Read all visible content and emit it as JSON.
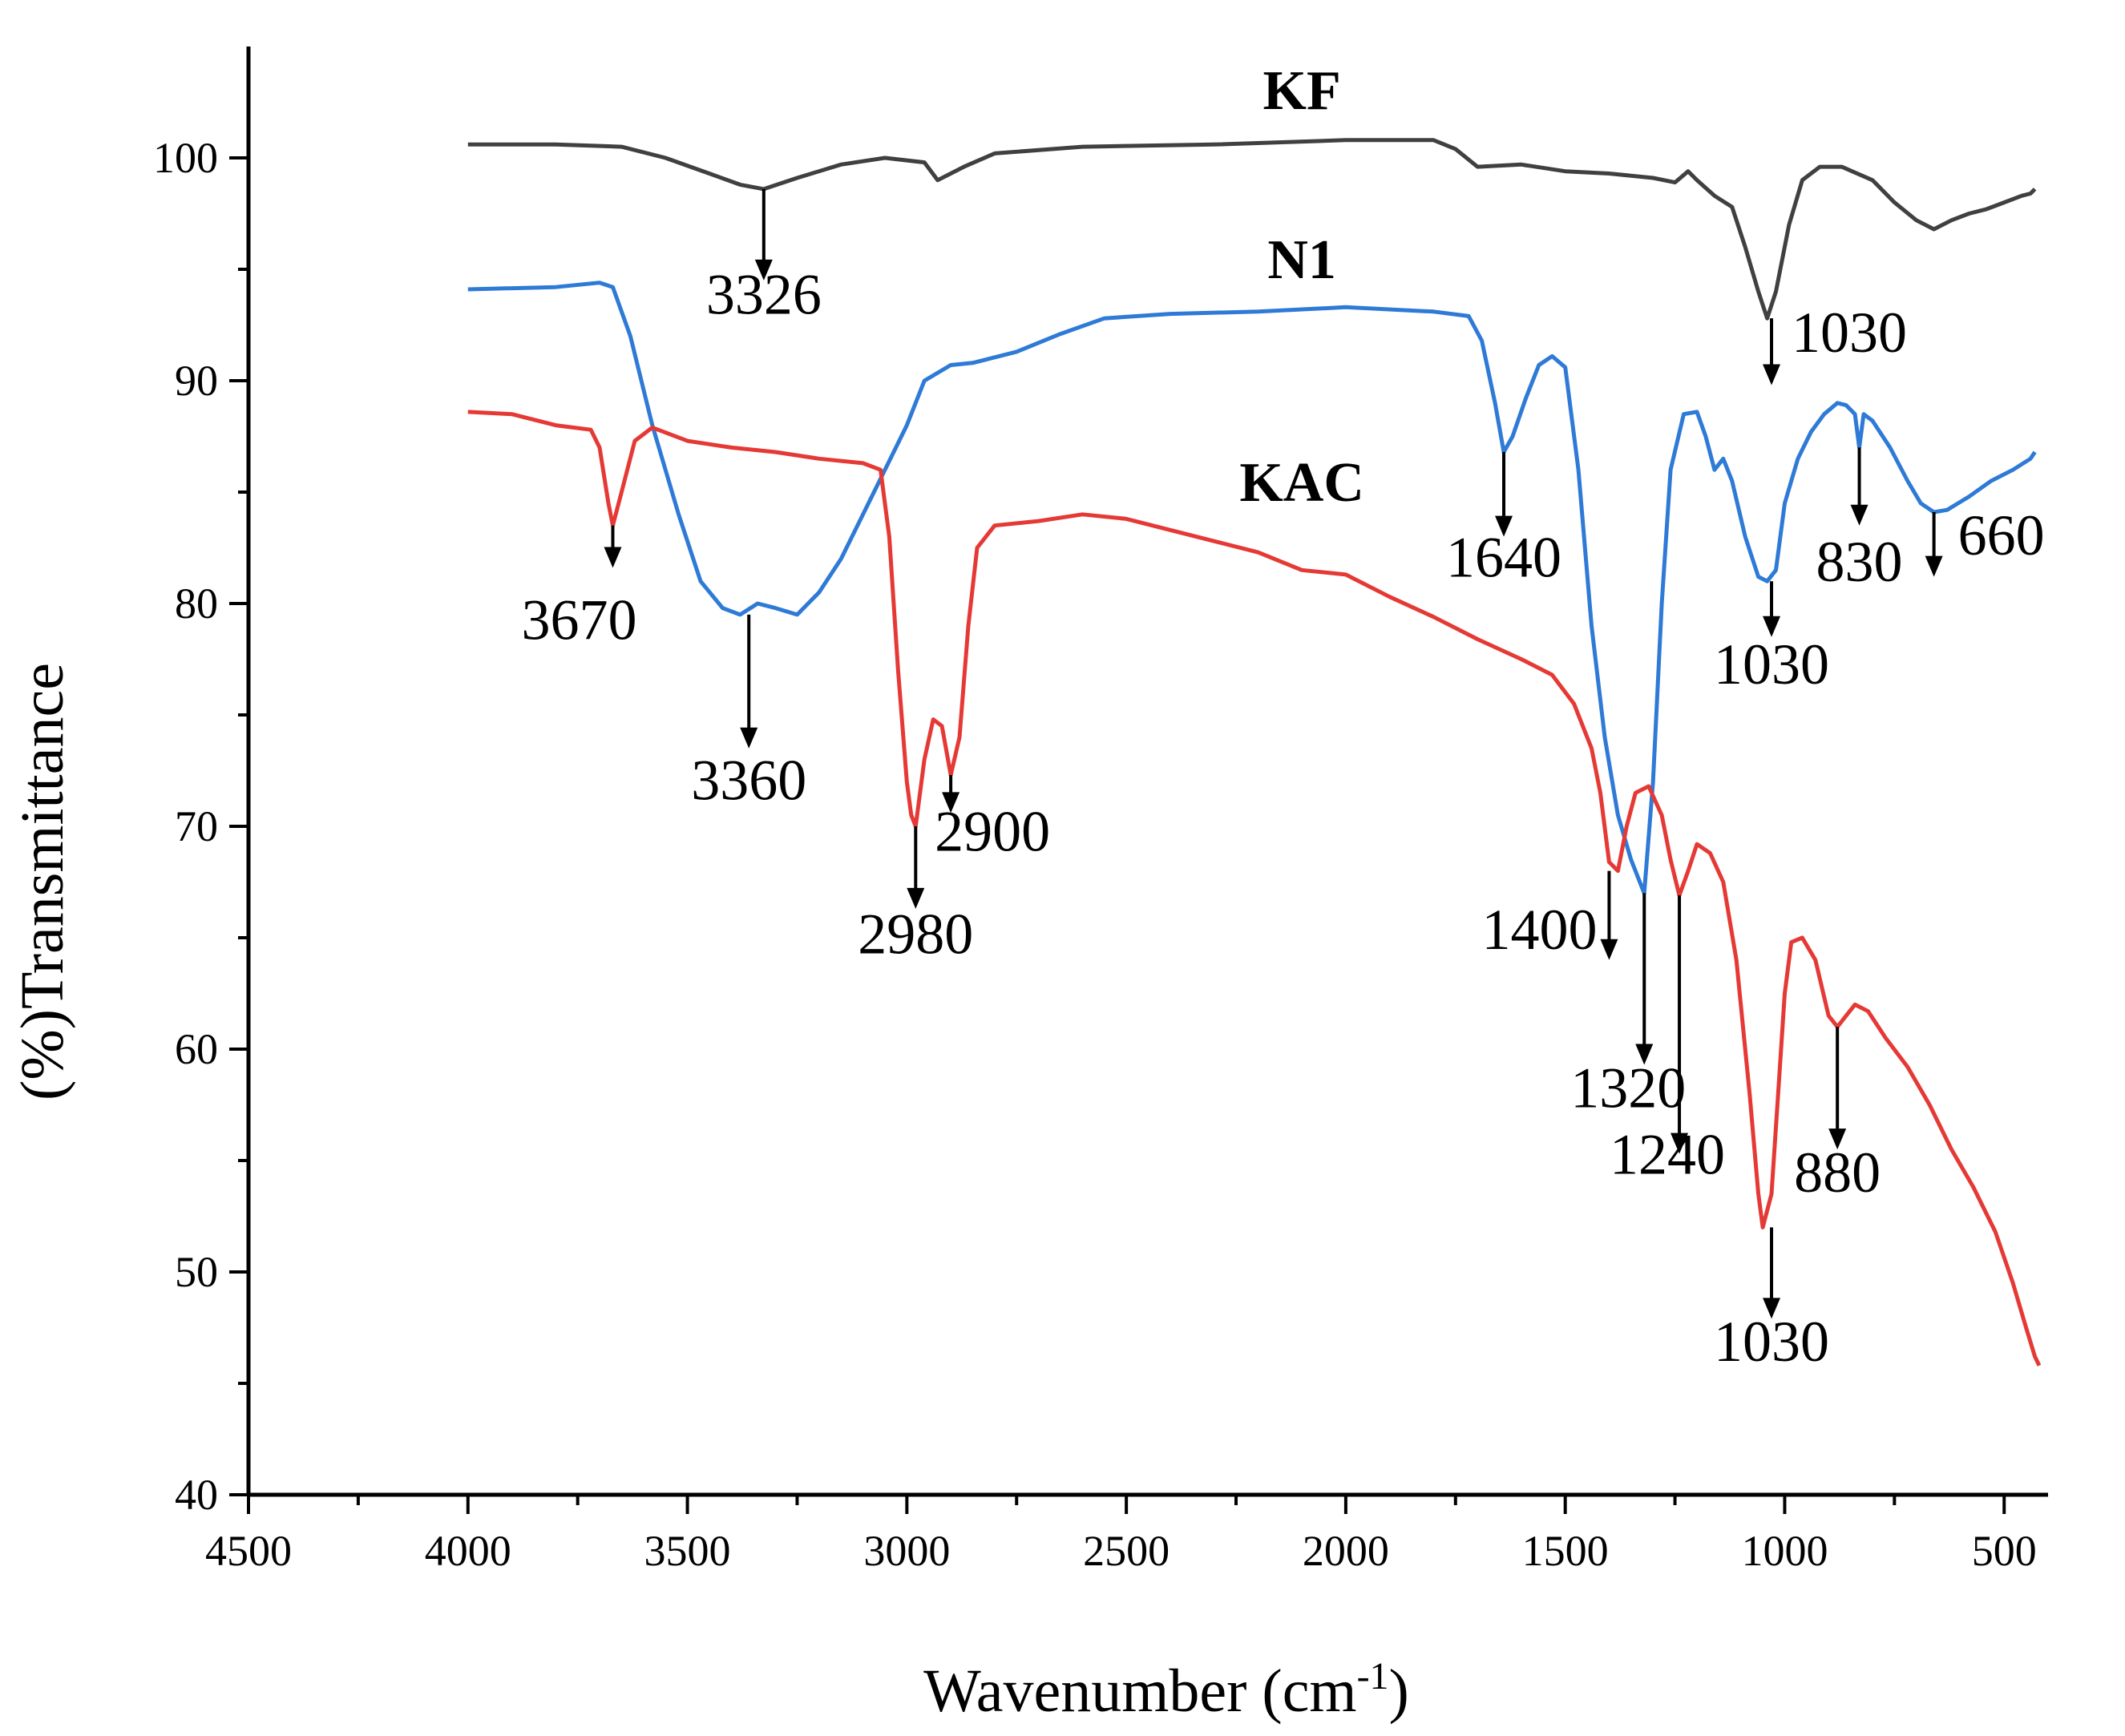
{
  "chart_data": {
    "type": "line",
    "xlabel": "Wavenumber (cm",
    "xlabel_sup": "-1",
    "xlabel_end": ")",
    "ylabel": "(%)Transmittance",
    "xlim": [
      4500,
      400
    ],
    "ylim": [
      40,
      105
    ],
    "x_ticks": [
      4500,
      4000,
      3500,
      3000,
      2500,
      2000,
      1500,
      1000,
      500
    ],
    "y_ticks": [
      40,
      50,
      60,
      70,
      80,
      90,
      100
    ],
    "series": [
      {
        "name": "KF",
        "color": "#404040",
        "label_point": [
          2100,
          102.2
        ],
        "points": [
          [
            4000,
            100.6
          ],
          [
            3800,
            100.6
          ],
          [
            3650,
            100.5
          ],
          [
            3550,
            100.0
          ],
          [
            3450,
            99.3
          ],
          [
            3380,
            98.8
          ],
          [
            3326,
            98.6
          ],
          [
            3250,
            99.1
          ],
          [
            3150,
            99.7
          ],
          [
            3050,
            100.0
          ],
          [
            2960,
            99.8
          ],
          [
            2930,
            99.0
          ],
          [
            2900,
            99.3
          ],
          [
            2870,
            99.6
          ],
          [
            2800,
            100.2
          ],
          [
            2600,
            100.5
          ],
          [
            2300,
            100.6
          ],
          [
            2000,
            100.8
          ],
          [
            1800,
            100.8
          ],
          [
            1750,
            100.4
          ],
          [
            1700,
            99.6
          ],
          [
            1600,
            99.7
          ],
          [
            1500,
            99.4
          ],
          [
            1400,
            99.3
          ],
          [
            1300,
            99.1
          ],
          [
            1250,
            98.9
          ],
          [
            1220,
            99.4
          ],
          [
            1200,
            99.0
          ],
          [
            1160,
            98.3
          ],
          [
            1120,
            97.8
          ],
          [
            1090,
            96.0
          ],
          [
            1060,
            94.0
          ],
          [
            1040,
            92.8
          ],
          [
            1020,
            94.0
          ],
          [
            990,
            97.0
          ],
          [
            960,
            99.0
          ],
          [
            920,
            99.6
          ],
          [
            870,
            99.6
          ],
          [
            800,
            99.0
          ],
          [
            750,
            98.0
          ],
          [
            700,
            97.2
          ],
          [
            660,
            96.8
          ],
          [
            620,
            97.2
          ],
          [
            580,
            97.5
          ],
          [
            540,
            97.7
          ],
          [
            500,
            98.0
          ],
          [
            460,
            98.3
          ],
          [
            440,
            98.4
          ],
          [
            430,
            98.6
          ]
        ]
      },
      {
        "name": "N1",
        "color": "#2e7ad6",
        "label_point": [
          2100,
          94.6
        ],
        "points": [
          [
            4000,
            94.1
          ],
          [
            3800,
            94.2
          ],
          [
            3700,
            94.4
          ],
          [
            3670,
            94.2
          ],
          [
            3630,
            92.0
          ],
          [
            3580,
            88.0
          ],
          [
            3520,
            84.0
          ],
          [
            3470,
            81.0
          ],
          [
            3420,
            79.8
          ],
          [
            3380,
            79.5
          ],
          [
            3340,
            80.0
          ],
          [
            3300,
            79.8
          ],
          [
            3250,
            79.5
          ],
          [
            3200,
            80.5
          ],
          [
            3150,
            82.0
          ],
          [
            3100,
            84.0
          ],
          [
            3050,
            86.0
          ],
          [
            3000,
            88.0
          ],
          [
            2960,
            90.0
          ],
          [
            2900,
            90.7
          ],
          [
            2850,
            90.8
          ],
          [
            2750,
            91.3
          ],
          [
            2650,
            92.1
          ],
          [
            2550,
            92.8
          ],
          [
            2400,
            93.0
          ],
          [
            2200,
            93.1
          ],
          [
            2000,
            93.3
          ],
          [
            1800,
            93.1
          ],
          [
            1720,
            92.9
          ],
          [
            1690,
            91.8
          ],
          [
            1660,
            89.0
          ],
          [
            1640,
            86.8
          ],
          [
            1620,
            87.5
          ],
          [
            1590,
            89.2
          ],
          [
            1560,
            90.7
          ],
          [
            1530,
            91.1
          ],
          [
            1500,
            90.6
          ],
          [
            1470,
            86.0
          ],
          [
            1440,
            79.0
          ],
          [
            1410,
            74.0
          ],
          [
            1380,
            70.5
          ],
          [
            1350,
            68.5
          ],
          [
            1320,
            67.0
          ],
          [
            1300,
            72.0
          ],
          [
            1280,
            80.0
          ],
          [
            1260,
            86.0
          ],
          [
            1230,
            88.5
          ],
          [
            1200,
            88.6
          ],
          [
            1180,
            87.5
          ],
          [
            1160,
            86.0
          ],
          [
            1140,
            86.5
          ],
          [
            1120,
            85.5
          ],
          [
            1090,
            83.0
          ],
          [
            1060,
            81.2
          ],
          [
            1040,
            81.0
          ],
          [
            1020,
            81.5
          ],
          [
            1000,
            84.5
          ],
          [
            970,
            86.5
          ],
          [
            940,
            87.7
          ],
          [
            910,
            88.5
          ],
          [
            880,
            89.0
          ],
          [
            860,
            88.9
          ],
          [
            840,
            88.5
          ],
          [
            830,
            87.0
          ],
          [
            820,
            88.5
          ],
          [
            800,
            88.2
          ],
          [
            760,
            87.0
          ],
          [
            720,
            85.5
          ],
          [
            690,
            84.5
          ],
          [
            660,
            84.1
          ],
          [
            630,
            84.2
          ],
          [
            580,
            84.8
          ],
          [
            530,
            85.5
          ],
          [
            480,
            86.0
          ],
          [
            440,
            86.5
          ],
          [
            430,
            86.8
          ]
        ]
      },
      {
        "name": "KAC",
        "color": "#e53935",
        "label_point": [
          2100,
          84.6
        ],
        "points": [
          [
            4000,
            88.6
          ],
          [
            3900,
            88.5
          ],
          [
            3800,
            88.0
          ],
          [
            3720,
            87.8
          ],
          [
            3700,
            87.0
          ],
          [
            3680,
            84.5
          ],
          [
            3670,
            83.5
          ],
          [
            3650,
            85.0
          ],
          [
            3620,
            87.3
          ],
          [
            3580,
            87.9
          ],
          [
            3500,
            87.3
          ],
          [
            3400,
            87.0
          ],
          [
            3300,
            86.8
          ],
          [
            3200,
            86.5
          ],
          [
            3100,
            86.3
          ],
          [
            3060,
            86.0
          ],
          [
            3040,
            83.0
          ],
          [
            3020,
            77.0
          ],
          [
            3000,
            72.0
          ],
          [
            2990,
            70.5
          ],
          [
            2980,
            70.0
          ],
          [
            2960,
            73.0
          ],
          [
            2940,
            74.8
          ],
          [
            2920,
            74.5
          ],
          [
            2900,
            72.3
          ],
          [
            2880,
            74.0
          ],
          [
            2860,
            79.0
          ],
          [
            2840,
            82.5
          ],
          [
            2800,
            83.5
          ],
          [
            2700,
            83.7
          ],
          [
            2600,
            84.0
          ],
          [
            2500,
            83.8
          ],
          [
            2400,
            83.3
          ],
          [
            2300,
            82.8
          ],
          [
            2200,
            82.3
          ],
          [
            2100,
            81.5
          ],
          [
            2000,
            81.3
          ],
          [
            1900,
            80.3
          ],
          [
            1800,
            79.4
          ],
          [
            1700,
            78.4
          ],
          [
            1600,
            77.5
          ],
          [
            1530,
            76.8
          ],
          [
            1480,
            75.5
          ],
          [
            1440,
            73.5
          ],
          [
            1420,
            71.5
          ],
          [
            1400,
            68.4
          ],
          [
            1380,
            68.0
          ],
          [
            1360,
            70.0
          ],
          [
            1340,
            71.5
          ],
          [
            1310,
            71.8
          ],
          [
            1280,
            70.5
          ],
          [
            1260,
            68.5
          ],
          [
            1240,
            66.9
          ],
          [
            1220,
            68.0
          ],
          [
            1200,
            69.2
          ],
          [
            1170,
            68.8
          ],
          [
            1140,
            67.5
          ],
          [
            1110,
            64.0
          ],
          [
            1080,
            58.0
          ],
          [
            1060,
            53.5
          ],
          [
            1050,
            52.0
          ],
          [
            1030,
            53.5
          ],
          [
            1015,
            58.0
          ],
          [
            1000,
            62.5
          ],
          [
            985,
            64.8
          ],
          [
            960,
            65.0
          ],
          [
            930,
            64.0
          ],
          [
            900,
            61.5
          ],
          [
            880,
            61.0
          ],
          [
            860,
            61.5
          ],
          [
            840,
            62.0
          ],
          [
            810,
            61.7
          ],
          [
            770,
            60.5
          ],
          [
            720,
            59.2
          ],
          [
            670,
            57.5
          ],
          [
            620,
            55.5
          ],
          [
            570,
            53.8
          ],
          [
            520,
            51.8
          ],
          [
            480,
            49.5
          ],
          [
            450,
            47.5
          ],
          [
            430,
            46.2
          ],
          [
            420,
            45.8
          ]
        ]
      }
    ],
    "annotations": [
      {
        "label": "3326",
        "x": 3326,
        "arrow_from": 98.6,
        "arrow_to": 94.5,
        "text_y": 93.0,
        "anchor": "middle",
        "dx": 0
      },
      {
        "label": "1030",
        "x": 1030,
        "arrow_from": 92.8,
        "arrow_to": 89.8,
        "text_y": 91.3,
        "anchor": "start",
        "dx": 25
      },
      {
        "label": "1640",
        "x": 1640,
        "arrow_from": 86.8,
        "arrow_to": 83.0,
        "text_y": 81.2,
        "anchor": "middle",
        "dx": 0
      },
      {
        "label": "830",
        "x": 830,
        "arrow_from": 87.0,
        "arrow_to": 83.5,
        "text_y": 81.0,
        "anchor": "middle",
        "dx": 0
      },
      {
        "label": "660",
        "x": 660,
        "arrow_from": 84.1,
        "arrow_to": 81.2,
        "text_y": 82.2,
        "anchor": "start",
        "dx": 30
      },
      {
        "label": "1030",
        "x": 1030,
        "arrow_from": 81.0,
        "arrow_to": 78.5,
        "text_y": 76.4,
        "anchor": "middle",
        "dx": 0
      },
      {
        "label": "3670",
        "x": 3670,
        "arrow_from": 83.5,
        "arrow_to": 81.6,
        "text_y": 78.4,
        "anchor": "end",
        "dx": 30
      },
      {
        "label": "3360",
        "x": 3360,
        "arrow_from": 79.5,
        "arrow_to": 73.5,
        "text_y": 71.2,
        "anchor": "middle",
        "dx": 0
      },
      {
        "label": "2980",
        "x": 2980,
        "arrow_from": 70.0,
        "arrow_to": 66.3,
        "text_y": 64.3,
        "anchor": "middle",
        "dx": 0
      },
      {
        "label": "2900",
        "x": 2900,
        "arrow_from": 72.3,
        "arrow_to": 70.6,
        "text_y": 68.9,
        "anchor": "start",
        "dx": -20
      },
      {
        "label": "1400",
        "x": 1400,
        "arrow_from": 68.0,
        "arrow_to": 64.0,
        "text_y": 64.5,
        "anchor": "end",
        "dx": -15
      },
      {
        "label": "1320",
        "x": 1320,
        "arrow_from": 67.0,
        "arrow_to": 59.3,
        "text_y": 57.4,
        "anchor": "middle",
        "dx": -20
      },
      {
        "label": "1240",
        "x": 1240,
        "arrow_from": 66.9,
        "arrow_to": 55.3,
        "text_y": 54.4,
        "anchor": "middle",
        "dx": -15
      },
      {
        "label": "880",
        "x": 880,
        "arrow_from": 61.0,
        "arrow_to": 55.5,
        "text_y": 53.6,
        "anchor": "middle",
        "dx": 0
      },
      {
        "label": "1030",
        "x": 1030,
        "arrow_from": 52.0,
        "arrow_to": 47.9,
        "text_y": 46.0,
        "anchor": "middle",
        "dx": 0
      }
    ]
  }
}
